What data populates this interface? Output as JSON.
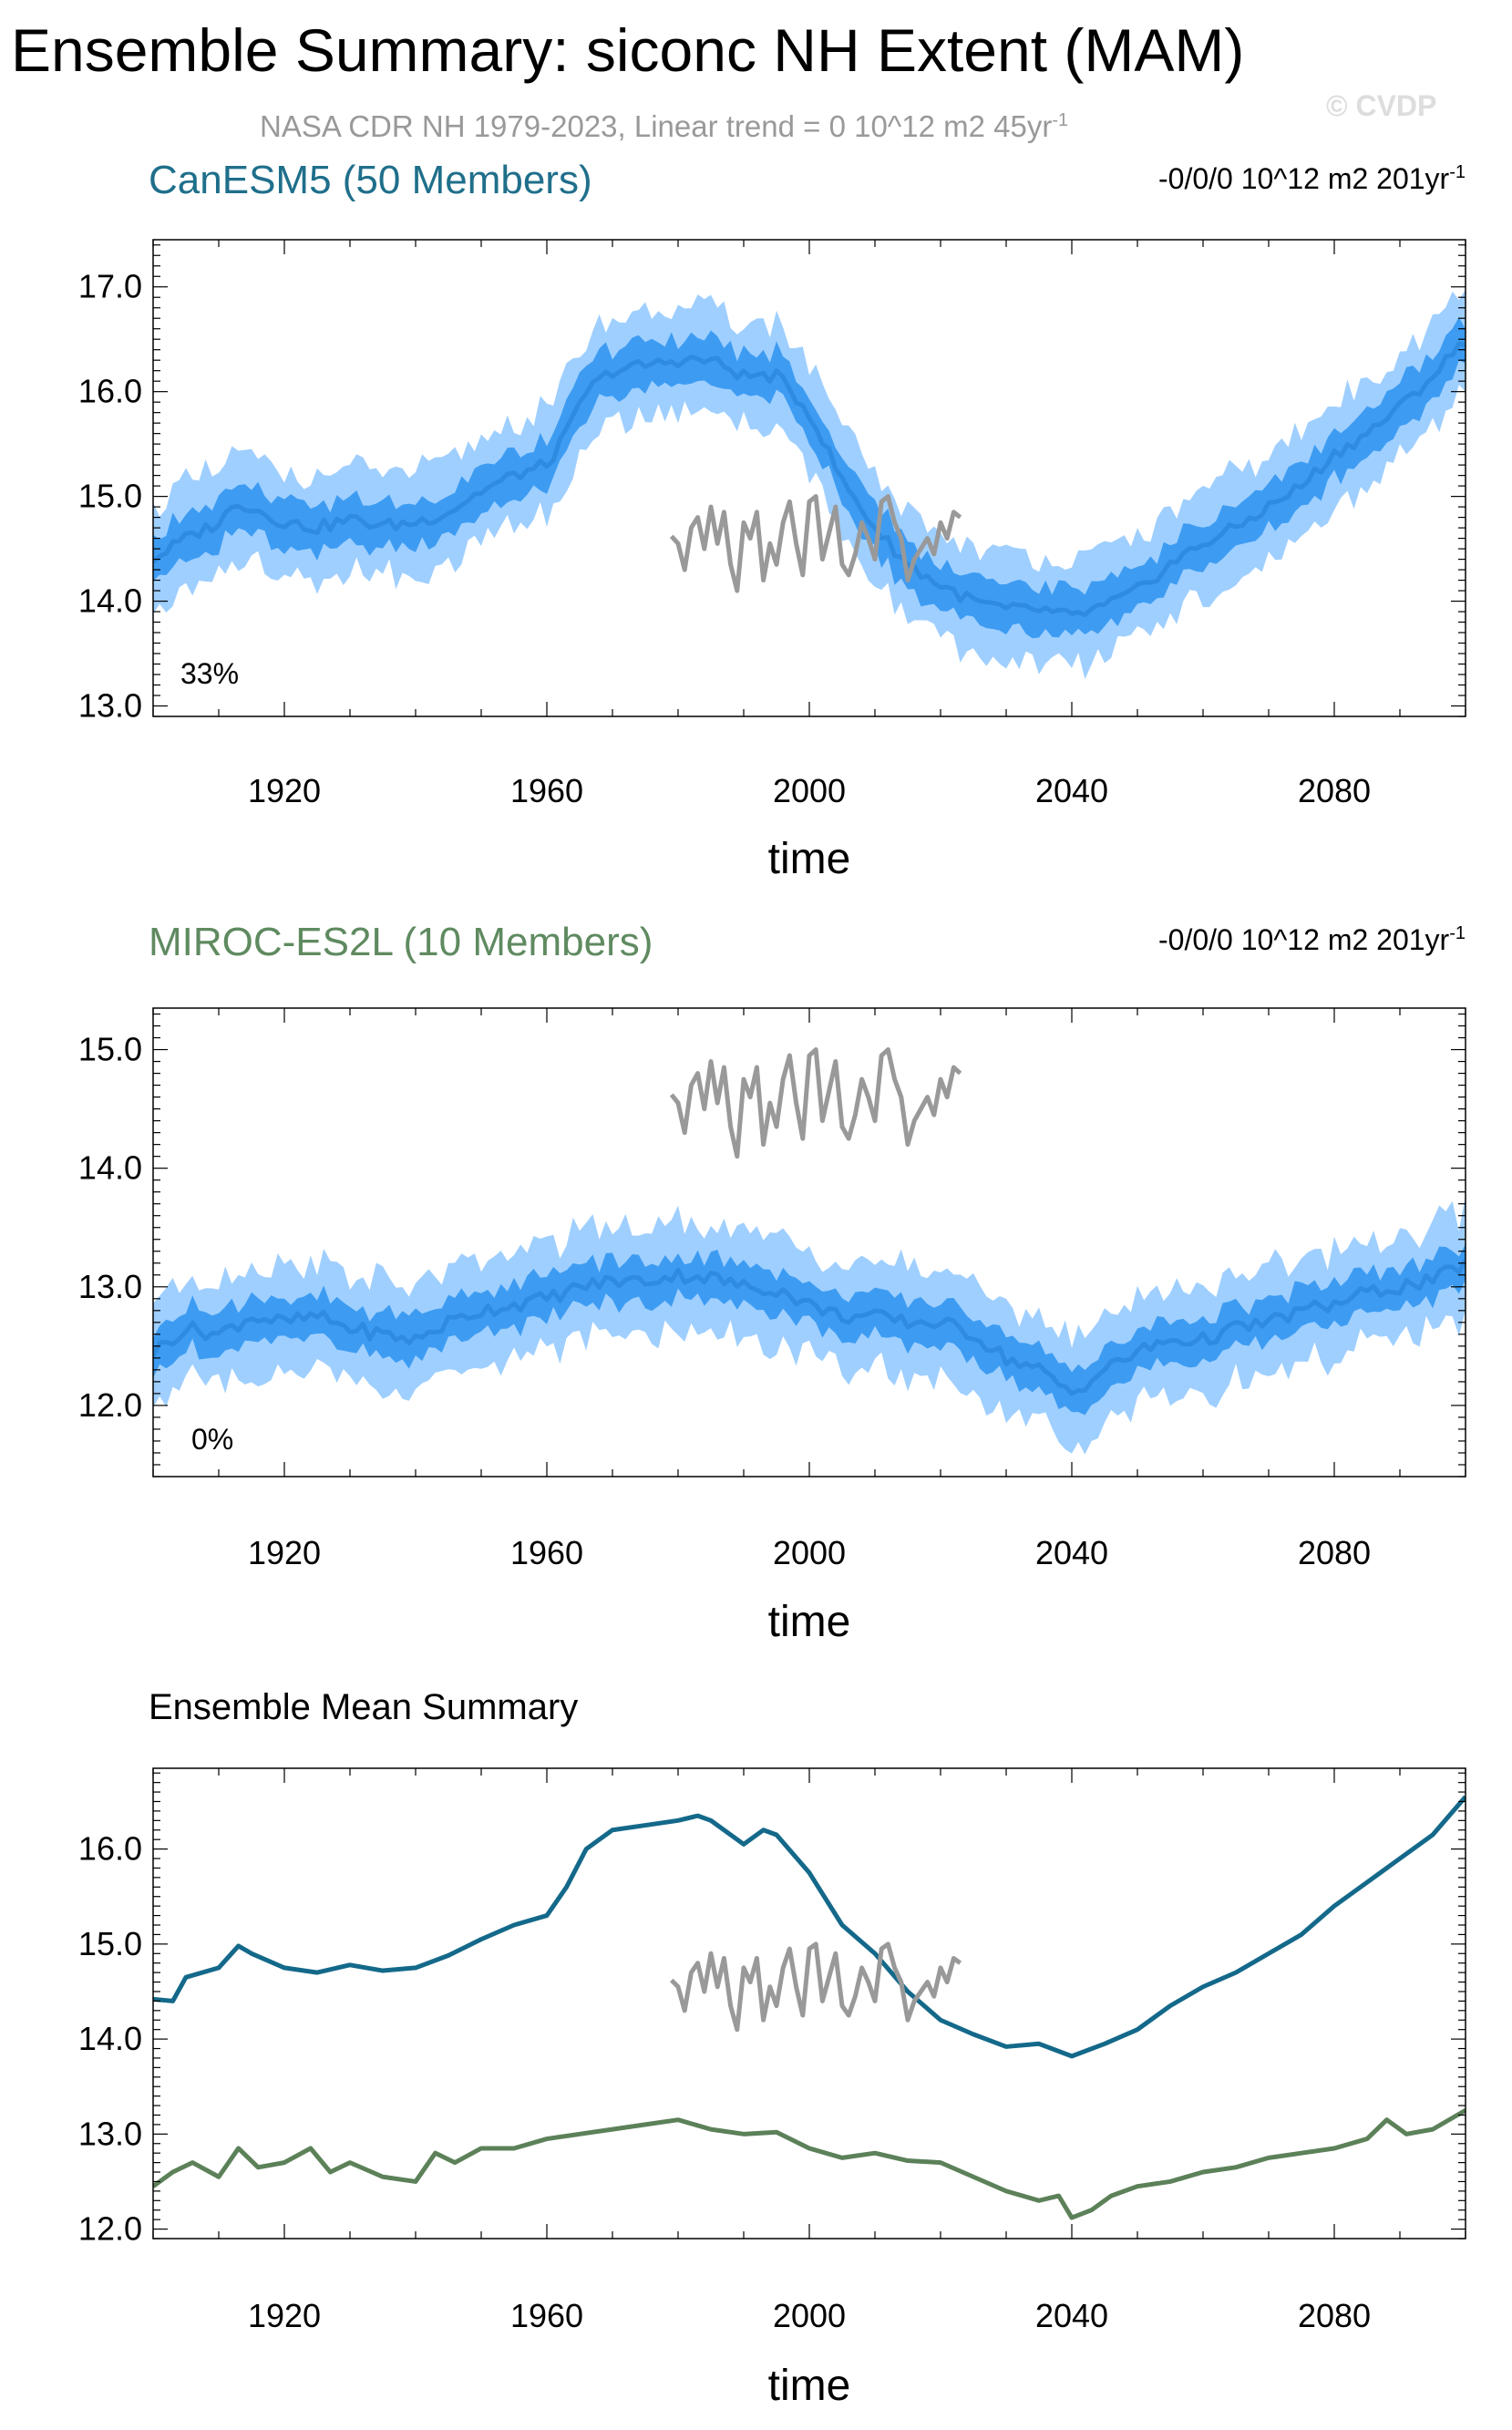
{
  "title": "Ensemble Summary: siconc NH Extent (MAM)",
  "subtitle": "NASA CDR NH 1979-2023, Linear trend = 0 10^12 m2 45yr",
  "subtitle_superscript": "-1",
  "watermark": "© CVDP",
  "colors": {
    "canesm5_title": "#1f6f8b",
    "miroc_title": "#5f8a60",
    "ens_outer": "#9fcfff",
    "ens_inner": "#3d9cf2",
    "ens_mean": "#2f8be0",
    "obs": "#999999",
    "canesm5_mean": "#14698a",
    "miroc_mean": "#5c8159"
  },
  "chart_data": [
    {
      "type": "area",
      "title": "CanESM5 (50 Members)",
      "trend_label": "-0/0/0 10^12 m2 201yr",
      "trend_superscript": "-1",
      "percent_label": "33%",
      "xlabel": "time",
      "ylabel": "",
      "xlim": [
        1900,
        2100
      ],
      "ylim": [
        12.9,
        17.45
      ],
      "xticks": [
        "1920",
        "1960",
        "2000",
        "2040",
        "2080"
      ],
      "yticks": [
        "13.0",
        "14.0",
        "15.0",
        "16.0",
        "17.0"
      ],
      "series": [
        {
          "name": "Ensemble mean",
          "role": "ensemble",
          "x": [
            1900,
            1905,
            1910,
            1913,
            1920,
            1925,
            1930,
            1935,
            1940,
            1945,
            1950,
            1955,
            1960,
            1963,
            1966,
            1970,
            1975,
            1980,
            1985,
            1990,
            1995,
            2000,
            2005,
            2010,
            2015,
            2020,
            2025,
            2030,
            2035,
            2040,
            2045,
            2050,
            2055,
            2060,
            2065,
            2070,
            2075,
            2080,
            2085,
            2090,
            2095,
            2100
          ],
          "values": [
            14.4,
            14.6,
            14.75,
            14.95,
            14.75,
            14.7,
            14.78,
            14.72,
            14.75,
            14.85,
            15.05,
            15.2,
            15.3,
            15.6,
            16.0,
            16.2,
            16.25,
            16.3,
            16.3,
            16.15,
            16.15,
            15.8,
            15.15,
            14.7,
            14.35,
            14.15,
            14.0,
            13.92,
            13.92,
            13.85,
            13.95,
            14.1,
            14.35,
            14.55,
            14.7,
            14.9,
            15.1,
            15.4,
            15.6,
            15.85,
            16.15,
            16.5
          ],
          "inner_half_width": 0.22,
          "outer_half_width": 0.5
        },
        {
          "name": "NASA CDR NH",
          "role": "observations",
          "x": [
            1979,
            1980,
            1981,
            1982,
            1983,
            1984,
            1985,
            1986,
            1987,
            1988,
            1989,
            1990,
            1991,
            1992,
            1993,
            1994,
            1995,
            1996,
            1997,
            1998,
            1999,
            2000,
            2001,
            2002,
            2003,
            2004,
            2005,
            2006,
            2007,
            2008,
            2009,
            2010,
            2011,
            2012,
            2013,
            2014,
            2015,
            2016,
            2017,
            2018,
            2019,
            2020,
            2021,
            2022,
            2023
          ],
          "values": [
            14.62,
            14.55,
            14.3,
            14.7,
            14.8,
            14.5,
            14.9,
            14.55,
            14.85,
            14.35,
            14.1,
            14.75,
            14.6,
            14.85,
            14.2,
            14.55,
            14.35,
            14.75,
            14.95,
            14.55,
            14.25,
            14.95,
            15.0,
            14.4,
            14.65,
            14.9,
            14.35,
            14.25,
            14.45,
            14.75,
            14.6,
            14.4,
            14.95,
            15.0,
            14.75,
            14.6,
            14.2,
            14.4,
            14.5,
            14.6,
            14.45,
            14.75,
            14.6,
            14.85,
            14.8
          ]
        }
      ]
    },
    {
      "type": "area",
      "title": "MIROC-ES2L (10 Members)",
      "trend_label": "-0/0/0 10^12 m2 201yr",
      "trend_superscript": "-1",
      "percent_label": "0%",
      "xlabel": "time",
      "ylabel": "",
      "xlim": [
        1900,
        2100
      ],
      "ylim": [
        11.4,
        15.35
      ],
      "xticks": [
        "1920",
        "1960",
        "2000",
        "2040",
        "2080"
      ],
      "yticks": [
        "12.0",
        "13.0",
        "14.0",
        "15.0"
      ],
      "series": [
        {
          "name": "Ensemble mean",
          "role": "ensemble",
          "x": [
            1900,
            1905,
            1910,
            1915,
            1920,
            1925,
            1930,
            1935,
            1940,
            1945,
            1950,
            1955,
            1960,
            1965,
            1970,
            1975,
            1980,
            1985,
            1990,
            1995,
            2000,
            2005,
            2010,
            2015,
            2020,
            2025,
            2030,
            2035,
            2040,
            2045,
            2050,
            2055,
            2060,
            2065,
            2070,
            2075,
            2080,
            2085,
            2090,
            2095,
            2100
          ],
          "values": [
            12.45,
            12.65,
            12.6,
            12.75,
            12.7,
            12.75,
            12.65,
            12.6,
            12.55,
            12.7,
            12.8,
            12.85,
            12.9,
            13.0,
            13.05,
            13.05,
            13.1,
            13.08,
            13.0,
            12.98,
            12.85,
            12.75,
            12.75,
            12.7,
            12.7,
            12.6,
            12.4,
            12.3,
            12.1,
            12.3,
            12.45,
            12.55,
            12.55,
            12.65,
            12.7,
            12.8,
            12.85,
            12.95,
            13.0,
            13.05,
            13.2
          ],
          "inner_half_width": 0.18,
          "outer_half_width": 0.45
        },
        {
          "name": "NASA CDR NH",
          "role": "observations",
          "x": [
            1979,
            1980,
            1981,
            1982,
            1983,
            1984,
            1985,
            1986,
            1987,
            1988,
            1989,
            1990,
            1991,
            1992,
            1993,
            1994,
            1995,
            1996,
            1997,
            1998,
            1999,
            2000,
            2001,
            2002,
            2003,
            2004,
            2005,
            2006,
            2007,
            2008,
            2009,
            2010,
            2011,
            2012,
            2013,
            2014,
            2015,
            2016,
            2017,
            2018,
            2019,
            2020,
            2021,
            2022,
            2023
          ],
          "values": [
            14.62,
            14.55,
            14.3,
            14.7,
            14.8,
            14.5,
            14.9,
            14.55,
            14.85,
            14.35,
            14.1,
            14.75,
            14.6,
            14.85,
            14.2,
            14.55,
            14.35,
            14.75,
            14.95,
            14.55,
            14.25,
            14.95,
            15.0,
            14.4,
            14.65,
            14.9,
            14.35,
            14.25,
            14.45,
            14.75,
            14.6,
            14.4,
            14.95,
            15.0,
            14.75,
            14.6,
            14.2,
            14.4,
            14.5,
            14.6,
            14.45,
            14.75,
            14.6,
            14.85,
            14.8
          ]
        }
      ]
    },
    {
      "type": "line",
      "title": "Ensemble Mean Summary",
      "xlabel": "time",
      "ylabel": "",
      "xlim": [
        1900,
        2100
      ],
      "ylim": [
        11.9,
        16.85
      ],
      "xticks": [
        "1920",
        "1960",
        "2000",
        "2040",
        "2080"
      ],
      "yticks": [
        "12.0",
        "13.0",
        "14.0",
        "15.0",
        "16.0"
      ],
      "series": [
        {
          "name": "CanESM5",
          "role": "mean_canesm5",
          "x": [
            1900,
            1903,
            1905,
            1910,
            1913,
            1915,
            1920,
            1925,
            1930,
            1935,
            1940,
            1945,
            1950,
            1955,
            1960,
            1963,
            1966,
            1970,
            1975,
            1980,
            1983,
            1985,
            1990,
            1993,
            1995,
            2000,
            2005,
            2010,
            2015,
            2020,
            2025,
            2030,
            2035,
            2040,
            2045,
            2050,
            2055,
            2060,
            2065,
            2070,
            2075,
            2080,
            2085,
            2090,
            2095,
            2100
          ],
          "values": [
            14.42,
            14.4,
            14.65,
            14.75,
            14.98,
            14.9,
            14.75,
            14.7,
            14.78,
            14.72,
            14.75,
            14.88,
            15.05,
            15.2,
            15.3,
            15.6,
            16.0,
            16.2,
            16.25,
            16.3,
            16.35,
            16.3,
            16.05,
            16.2,
            16.15,
            15.75,
            15.2,
            14.9,
            14.5,
            14.2,
            14.05,
            13.92,
            13.95,
            13.82,
            13.95,
            14.1,
            14.35,
            14.55,
            14.7,
            14.9,
            15.1,
            15.4,
            15.65,
            15.9,
            16.15,
            16.55
          ]
        },
        {
          "name": "MIROC-ES2L",
          "role": "mean_miroc",
          "x": [
            1900,
            1903,
            1906,
            1910,
            1913,
            1916,
            1920,
            1924,
            1927,
            1930,
            1935,
            1940,
            1943,
            1946,
            1950,
            1955,
            1960,
            1965,
            1970,
            1975,
            1980,
            1985,
            1990,
            1995,
            2000,
            2005,
            2010,
            2015,
            2020,
            2025,
            2030,
            2035,
            2038,
            2040,
            2043,
            2046,
            2050,
            2055,
            2060,
            2065,
            2070,
            2075,
            2080,
            2085,
            2088,
            2091,
            2095,
            2100
          ],
          "values": [
            12.45,
            12.6,
            12.7,
            12.55,
            12.85,
            12.65,
            12.7,
            12.85,
            12.6,
            12.7,
            12.55,
            12.5,
            12.8,
            12.7,
            12.85,
            12.85,
            12.95,
            13.0,
            13.05,
            13.1,
            13.15,
            13.05,
            13.0,
            13.02,
            12.85,
            12.75,
            12.8,
            12.72,
            12.7,
            12.55,
            12.4,
            12.3,
            12.35,
            12.12,
            12.2,
            12.35,
            12.45,
            12.5,
            12.6,
            12.65,
            12.75,
            12.8,
            12.85,
            12.95,
            13.15,
            13.0,
            13.05,
            13.25
          ]
        },
        {
          "name": "NASA CDR NH",
          "role": "observations",
          "x": [
            1979,
            1980,
            1981,
            1982,
            1983,
            1984,
            1985,
            1986,
            1987,
            1988,
            1989,
            1990,
            1991,
            1992,
            1993,
            1994,
            1995,
            1996,
            1997,
            1998,
            1999,
            2000,
            2001,
            2002,
            2003,
            2004,
            2005,
            2006,
            2007,
            2008,
            2009,
            2010,
            2011,
            2012,
            2013,
            2014,
            2015,
            2016,
            2017,
            2018,
            2019,
            2020,
            2021,
            2022,
            2023
          ],
          "values": [
            14.62,
            14.55,
            14.3,
            14.7,
            14.8,
            14.5,
            14.9,
            14.55,
            14.85,
            14.35,
            14.1,
            14.75,
            14.6,
            14.85,
            14.2,
            14.55,
            14.35,
            14.75,
            14.95,
            14.55,
            14.25,
            14.95,
            15.0,
            14.4,
            14.65,
            14.9,
            14.35,
            14.25,
            14.45,
            14.75,
            14.6,
            14.4,
            14.95,
            15.0,
            14.75,
            14.6,
            14.2,
            14.4,
            14.5,
            14.6,
            14.45,
            14.75,
            14.6,
            14.85,
            14.8
          ]
        }
      ]
    }
  ]
}
